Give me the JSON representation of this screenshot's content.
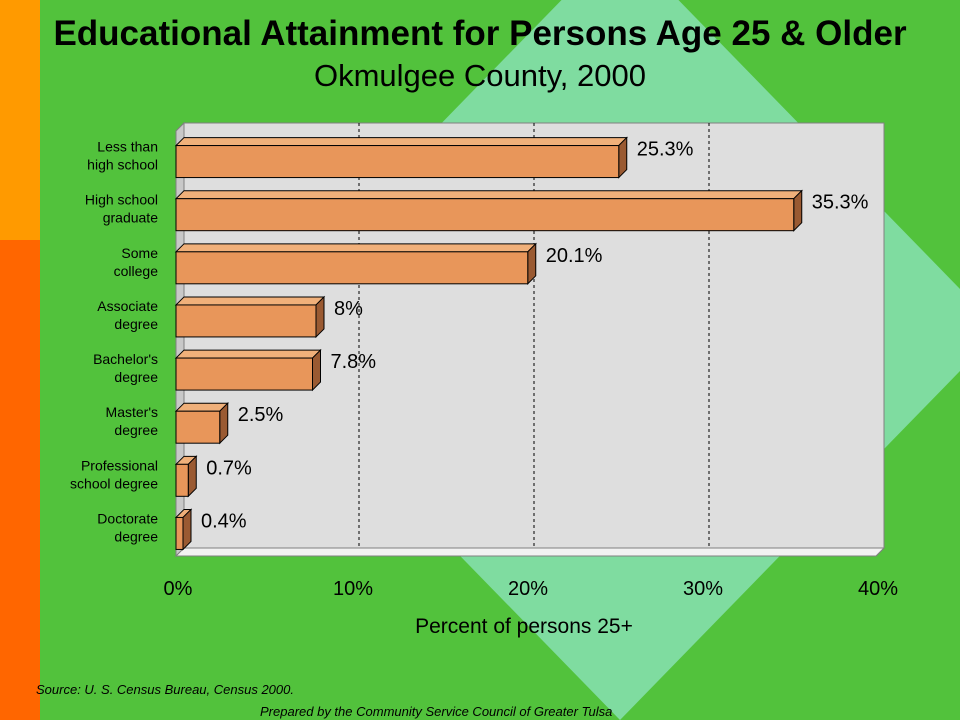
{
  "page": {
    "title": "Educational Attainment for Persons Age 25 & Older",
    "subtitle": "Okmulgee County, 2000",
    "source": "Source:  U. S. Census Bureau, Census 2000.",
    "prepared_by": "Prepared by the Community Service Council of Greater Tulsa"
  },
  "colors": {
    "background": "#52c23c",
    "diamond": "#7fdca0",
    "side_band_top": "#ff9a00",
    "side_band_bottom": "#ff6600",
    "plot_area": "#dedede",
    "bar_front": "#e8965a",
    "bar_top": "#f0b07a",
    "bar_side": "#9a5a32"
  },
  "chart_data": {
    "type": "bar",
    "orientation": "horizontal",
    "categories": [
      [
        "Less than",
        "high school"
      ],
      [
        "High school",
        "graduate"
      ],
      [
        "Some",
        "college"
      ],
      [
        "Associate",
        "degree"
      ],
      [
        "Bachelor's",
        "degree"
      ],
      [
        "Master's",
        "degree"
      ],
      [
        "Professional",
        "school degree"
      ],
      [
        "Doctorate",
        "degree"
      ]
    ],
    "values": [
      25.3,
      35.3,
      20.1,
      8,
      7.8,
      2.5,
      0.7,
      0.4
    ],
    "data_labels": [
      "25.3%",
      "35.3%",
      "20.1%",
      "8%",
      "7.8%",
      "2.5%",
      "0.7%",
      "0.4%"
    ],
    "x_ticks": [
      0,
      10,
      20,
      30,
      40
    ],
    "x_tick_labels": [
      "0%",
      "10%",
      "20%",
      "30%",
      "40%"
    ],
    "xlim": [
      0,
      40
    ],
    "xlabel": "Percent of persons 25+",
    "grid": "vertical dashed",
    "legend": "none"
  }
}
